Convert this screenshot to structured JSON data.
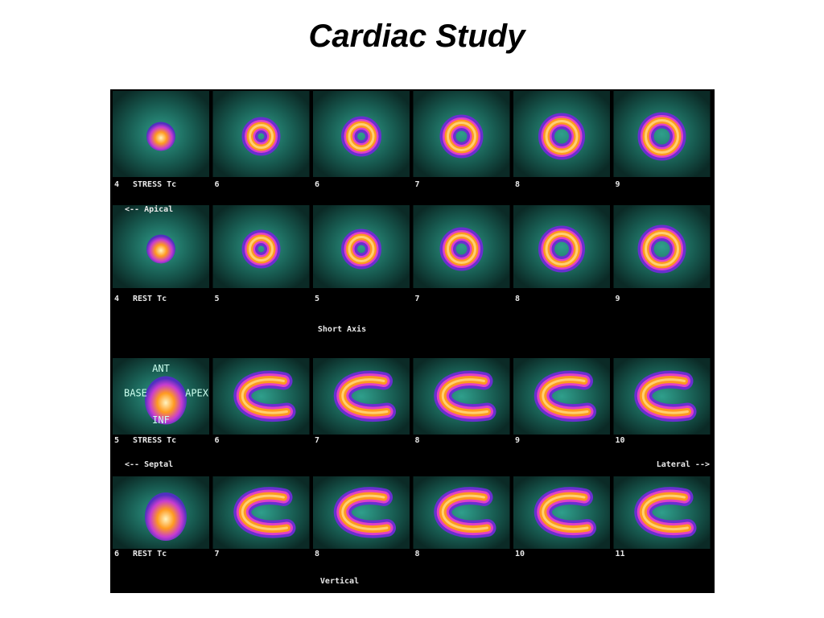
{
  "title": "Cardiac Study",
  "rows": [
    {
      "label": "STRESS Tc",
      "numbers": [
        "4",
        "6",
        "6",
        "7",
        "8",
        "9"
      ]
    },
    {
      "label": "REST Tc",
      "numbers": [
        "4",
        "5",
        "5",
        "7",
        "8",
        "9"
      ]
    },
    {
      "label": "STRESS Tc",
      "numbers": [
        "5",
        "6",
        "7",
        "8",
        "9",
        "10"
      ]
    },
    {
      "label": "REST Tc",
      "numbers": [
        "6",
        "7",
        "8",
        "8",
        "10",
        "11"
      ]
    }
  ],
  "annotations": {
    "apical": "<-- Apical",
    "short_axis": "Short Axis",
    "septal": "<-- Septal",
    "lateral": "Lateral -->",
    "vertical": "Vertical"
  },
  "orientation": {
    "ant": "ANT",
    "base": "BASE",
    "apex": "APEX",
    "inf": "INF"
  }
}
